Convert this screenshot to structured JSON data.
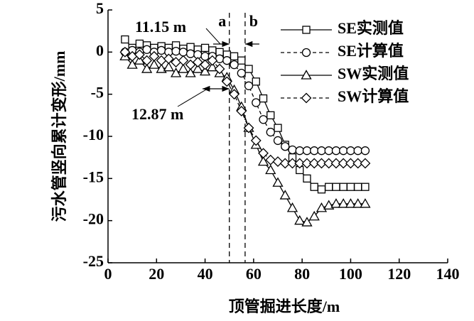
{
  "chart_data": {
    "type": "line",
    "xlabel": "顶管掘进长度/m",
    "ylabel": "污水管竖向累计变形/mm",
    "x": [
      7,
      10,
      13,
      16,
      19,
      22,
      25,
      28,
      31,
      34,
      37,
      40,
      43,
      46,
      49,
      52,
      55,
      58,
      61,
      64,
      67,
      70,
      73,
      76,
      79,
      82,
      85,
      88,
      91,
      94,
      97,
      100,
      103,
      106
    ],
    "series": [
      {
        "name": "SE实测值",
        "color": "#000000",
        "marker": "square",
        "dash": false,
        "values": [
          1.5,
          0.5,
          1,
          0.8,
          0.5,
          0.7,
          0.5,
          0.8,
          0.4,
          0.6,
          0.3,
          0.5,
          0.2,
          0,
          -0.3,
          -0.5,
          -1,
          -2,
          -3.5,
          -5.5,
          -7.5,
          -9,
          -11,
          -12.5,
          -14,
          -15,
          -16,
          -16.3,
          -16,
          -16,
          -16,
          -16,
          -16,
          -16
        ]
      },
      {
        "name": "SE计算值",
        "color": "#000000",
        "marker": "circle",
        "dash": true,
        "values": [
          0,
          0.2,
          0,
          0.3,
          0,
          0.2,
          0,
          0.1,
          0,
          -0.2,
          -0.3,
          -0.5,
          -0.5,
          -0.8,
          -1,
          -1.5,
          -2.5,
          -4,
          -6,
          -8,
          -9.5,
          -10.5,
          -11.2,
          -11.6,
          -11.7,
          -11.7,
          -11.7,
          -11.7,
          -11.7,
          -11.7,
          -11.7,
          -11.7,
          -11.7,
          -11.7
        ]
      },
      {
        "name": "SW实测值",
        "color": "#000000",
        "marker": "triangle",
        "dash": false,
        "values": [
          -0.5,
          -1.5,
          -1,
          -2,
          -1.5,
          -2,
          -1.8,
          -2.5,
          -2,
          -2.5,
          -2,
          -2.3,
          -1.8,
          -2.5,
          -3,
          -4.5,
          -6.5,
          -9,
          -11,
          -13,
          -14,
          -15.5,
          -17,
          -18.5,
          -20,
          -20.2,
          -19.5,
          -18.5,
          -18.2,
          -18,
          -18,
          -18,
          -18,
          -18
        ]
      },
      {
        "name": "SW计算值",
        "color": "#000000",
        "marker": "diamond",
        "dash": true,
        "values": [
          0,
          -0.5,
          -0.3,
          -1,
          -0.5,
          -1,
          -0.8,
          -1.2,
          -1,
          -1.5,
          -1.2,
          -1.5,
          -1,
          -2,
          -3.5,
          -5,
          -7,
          -9,
          -10.5,
          -12,
          -12.8,
          -13,
          -13.2,
          -13.2,
          -13.2,
          -13.2,
          -13.2,
          -13.2,
          -13.2,
          -13.2,
          -13.2,
          -13.2,
          -13.2,
          -13.2
        ]
      }
    ],
    "vlines": [
      {
        "label": "a",
        "x": 50
      },
      {
        "label": "b",
        "x": 56.5
      }
    ],
    "annotations": [
      "11.15 m",
      "12.87 m"
    ],
    "xlim": [
      0,
      140
    ],
    "xticks": [
      0,
      20,
      40,
      60,
      80,
      100,
      120,
      140
    ],
    "ylim": [
      -25,
      5
    ],
    "yticks": [
      5,
      0,
      -5,
      -10,
      -15,
      -20,
      -25
    ],
    "legend": "upper right"
  }
}
